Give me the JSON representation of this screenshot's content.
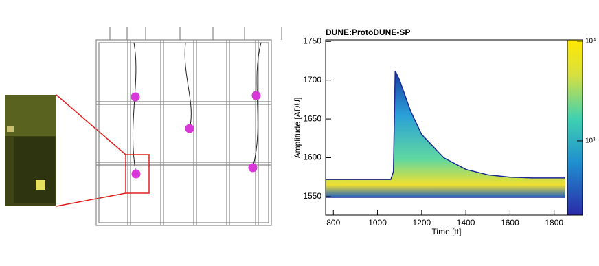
{
  "chart_data": {
    "type": "heatmap",
    "title": "DUNE:ProtoDUNE-SP",
    "x_label": "Time [tt]",
    "y_label": "Amplitude [ADU]",
    "x": [
      765,
      1060,
      1072,
      1080,
      1100,
      1150,
      1200,
      1300,
      1400,
      1500,
      1600,
      1700,
      1850
    ],
    "series": [
      {
        "values": [
          1572,
          1572,
          1582,
          1712,
          1700,
          1660,
          1630,
          1600,
          1585,
          1578,
          1575,
          1574,
          1574
        ]
      },
      {
        "values": [
          1549,
          1549,
          1549,
          1549,
          1549,
          1549,
          1549,
          1549,
          1549,
          1549,
          1549,
          1549,
          1549
        ]
      }
    ],
    "xlim": [
      765,
      1860
    ],
    "ylim": [
      1526,
      1752
    ],
    "xticks": [
      800,
      1000,
      1200,
      1400,
      1600,
      1800
    ],
    "yticks": [
      1550,
      1600,
      1650,
      1700,
      1750
    ],
    "zlim": [
      180,
      10300
    ],
    "zlog": true,
    "zticks": [
      {
        "value": 1000,
        "label": "10³"
      },
      {
        "value": 10000,
        "label": "10⁴"
      }
    ]
  }
}
